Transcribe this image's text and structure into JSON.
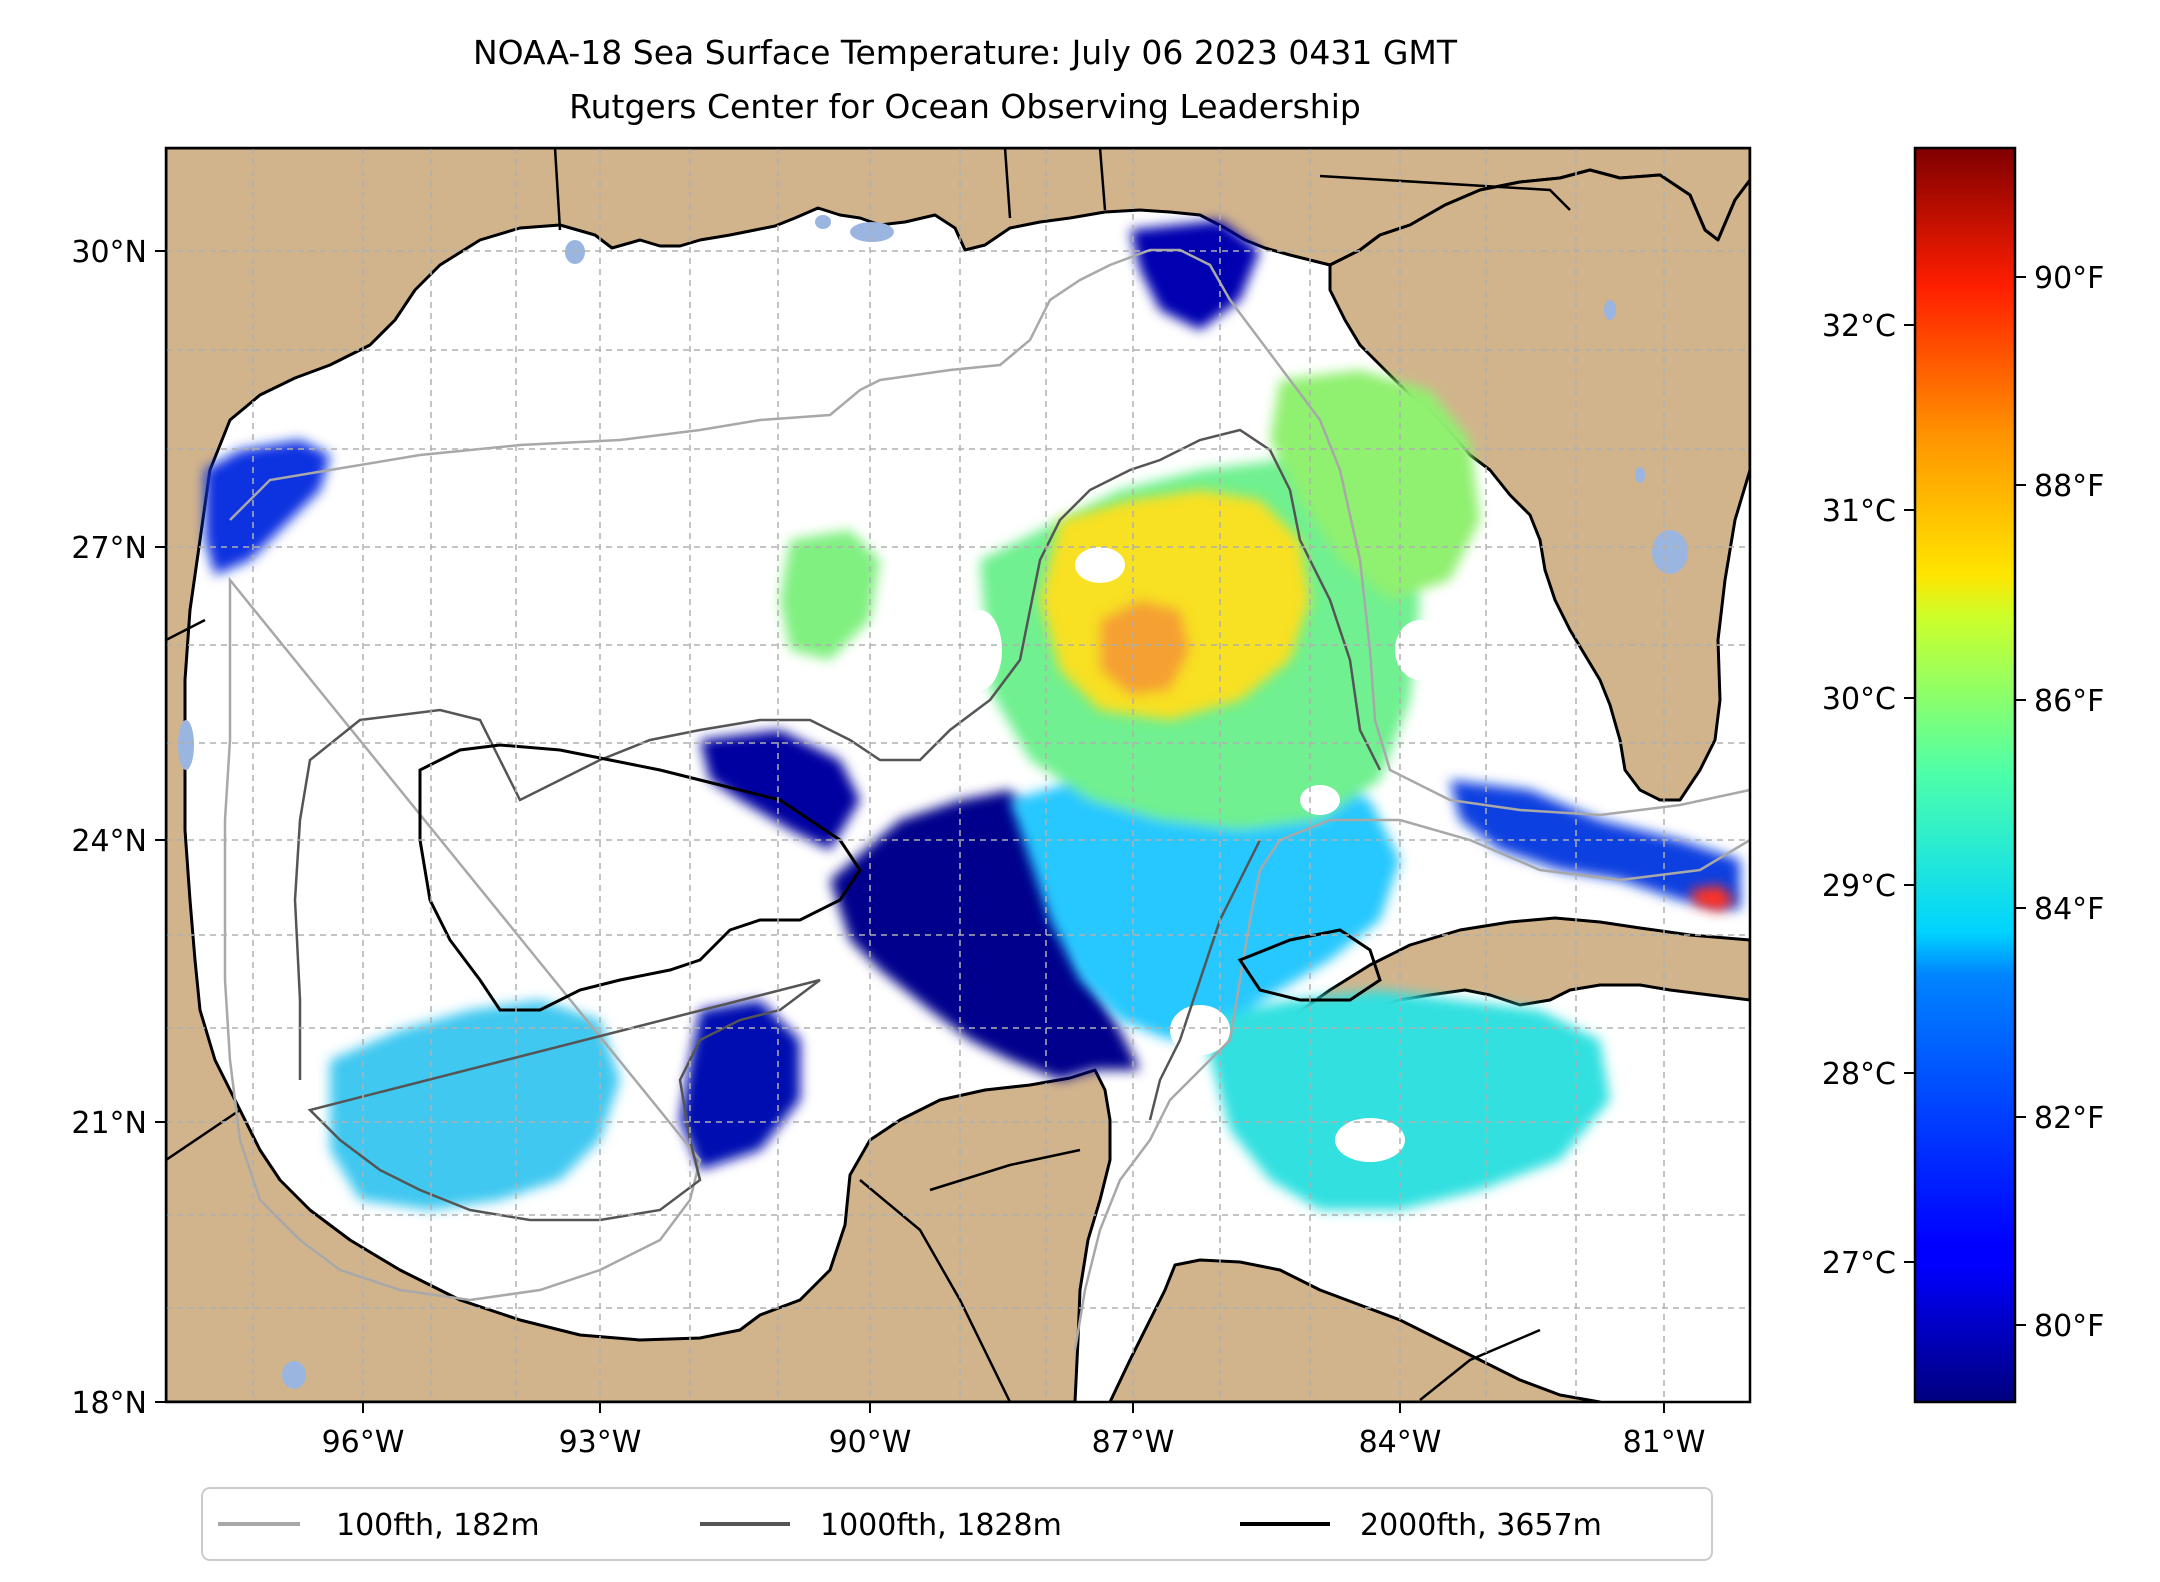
{
  "title": {
    "line1": "NOAA-18 Sea Surface Temperature: July 06 2023 0431 GMT",
    "line2": "Rutgers Center for Ocean Observing Leadership"
  },
  "map": {
    "lat_labels": [
      "30°N",
      "27°N",
      "24°N",
      "21°N",
      "18°N"
    ],
    "lon_labels": [
      "96°W",
      "93°W",
      "90°W",
      "87°W",
      "84°W",
      "81°W"
    ],
    "colors": {
      "land": "#d2b48c",
      "no_data_ocean": "#ffffff",
      "lakes": "#9ab5e0",
      "grid": "#b0b0b0",
      "contour_100fth": "#a8a8a8",
      "contour_1000fth": "#555555",
      "contour_2000fth": "#000000"
    }
  },
  "colorbar": {
    "colormap": "jet",
    "celsius_ticks": [
      "32°C",
      "31°C",
      "30°C",
      "29°C",
      "28°C",
      "27°C"
    ],
    "fahrenheit_ticks": [
      "90°F",
      "88°F",
      "86°F",
      "84°F",
      "82°F",
      "80°F"
    ]
  },
  "legend": {
    "items": [
      {
        "label": "100fth, 182m",
        "color": "#a8a8a8"
      },
      {
        "label": "1000fth, 1828m",
        "color": "#555555"
      },
      {
        "label": "2000fth, 3657m",
        "color": "#000000"
      }
    ]
  }
}
